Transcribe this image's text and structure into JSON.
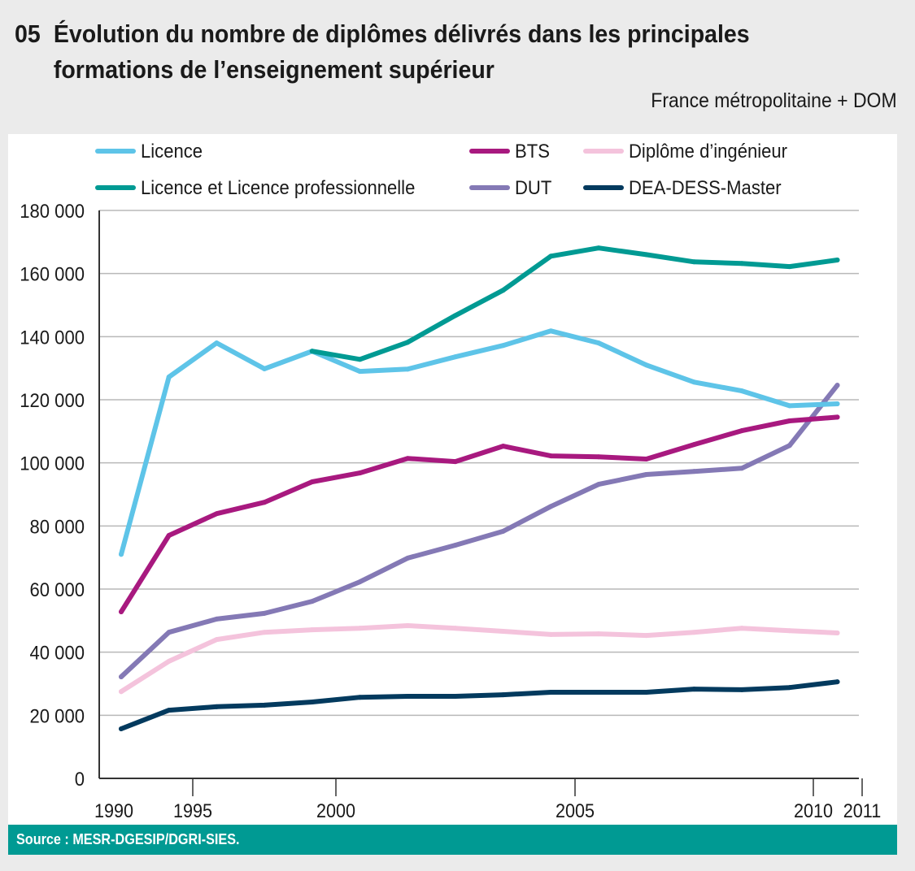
{
  "header": {
    "number": "05",
    "title_line1": "Évolution du nombre de diplômes délivrés dans les principales",
    "title_line2": "formations de l’enseignement supérieur",
    "subtitle": "France métropolitaine + DOM"
  },
  "footer": {
    "source": "Source : MESR-DGESIP/DGRI-SIES."
  },
  "chart_data": {
    "type": "line",
    "title": "Évolution du nombre de diplômes délivrés dans les principales formations de l’enseignement supérieur",
    "subtitle": "France métropolitaine + DOM",
    "xlabel": "",
    "ylabel": "",
    "x_tick_labels": [
      "1990",
      "1995",
      "2000",
      "2005",
      "2010",
      "2011"
    ],
    "x": [
      "1990",
      "1995",
      "1997",
      "1998",
      "1999",
      "2000",
      "2001",
      "2002",
      "2003",
      "2004",
      "2005",
      "2006",
      "2007",
      "2008",
      "2009",
      "2010"
    ],
    "y_ticks": [
      0,
      20000,
      40000,
      60000,
      80000,
      100000,
      120000,
      140000,
      160000,
      180000
    ],
    "y_tick_labels": [
      "0",
      "20 000",
      "40 000",
      "60 000",
      "80 000",
      "100 000",
      "120 000",
      "140 000",
      "160 000",
      "180 000"
    ],
    "ylim": [
      0,
      180000
    ],
    "grid": true,
    "legend_position": "top",
    "series": [
      {
        "name": "Licence",
        "color": "#5ec4e8",
        "values": [
          71000,
          127200,
          138000,
          129800,
          135400,
          129000,
          129700,
          133600,
          137200,
          141800,
          138000,
          131000,
          125600,
          122800,
          118100,
          118700
        ]
      },
      {
        "name": "Licence et Licence professionnelle",
        "color": "#009a93",
        "values": [
          null,
          null,
          null,
          null,
          135400,
          132800,
          138200,
          146700,
          154700,
          165500,
          168100,
          166000,
          163700,
          163200,
          162200,
          164300
        ]
      },
      {
        "name": "BTS",
        "color": "#a8197f",
        "values": [
          52800,
          77000,
          83900,
          87500,
          94000,
          96800,
          101400,
          100400,
          105300,
          102200,
          101900,
          101200,
          105800,
          110200,
          113300,
          114500
        ]
      },
      {
        "name": "DUT",
        "color": "#8479b5",
        "values": [
          32200,
          46300,
          50500,
          52300,
          56100,
          62300,
          69800,
          73900,
          78300,
          86200,
          93200,
          96300,
          97300,
          98300,
          105500,
          124600
        ]
      },
      {
        "name": "Diplôme d’ingénieur",
        "color": "#f4c3dc",
        "values": [
          27500,
          37100,
          44000,
          46300,
          47100,
          47600,
          48400,
          47600,
          46600,
          45600,
          45800,
          45300,
          46300,
          47600,
          46800,
          46100
        ]
      },
      {
        "name": "DEA-DESS-Master",
        "color": "#033a5e",
        "values": [
          15700,
          21600,
          22700,
          23200,
          24200,
          25700,
          26000,
          26000,
          26500,
          27300,
          27300,
          27300,
          28300,
          28100,
          28800,
          30600
        ]
      }
    ]
  }
}
